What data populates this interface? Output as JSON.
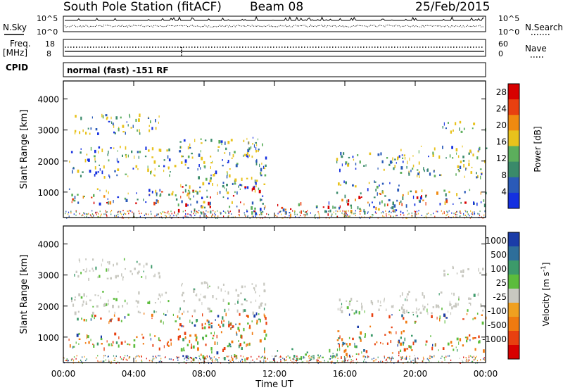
{
  "header": {
    "station": "South Pole Station (fitACF)",
    "beam": "Beam 08",
    "date": "25/Feb/2015"
  },
  "noise_panel": {
    "left_label": "N.Sky",
    "right_label": "N.Search",
    "ticks_left": [
      "10^5",
      "10^0"
    ],
    "ticks_right": [
      "10^5",
      "10^0"
    ]
  },
  "freq_panel": {
    "left_label_1": "Freq.",
    "left_label_2": "[MHz]",
    "ticks_left": [
      "18",
      "8"
    ],
    "right_label": "Nave",
    "ticks_right": [
      "60",
      "0"
    ]
  },
  "cpid": {
    "label": "CPID",
    "value": "normal (fast) -151 RF"
  },
  "chart_data": [
    {
      "type": "heatmap",
      "name": "power-panel",
      "ylabel": "Slant Range [km]",
      "xlabel": "",
      "ylim": [
        180,
        4580
      ],
      "yticks": [
        "1000",
        "2000",
        "3000",
        "4000"
      ],
      "xticks": [
        "00:00",
        "04:00",
        "08:00",
        "12:00",
        "16:00",
        "20:00",
        "00:00"
      ],
      "x_hours": [
        0,
        4,
        8,
        12,
        16,
        20,
        24
      ],
      "colorbar": {
        "label": "Power [dB]",
        "ticks": [
          "4",
          "8",
          "12",
          "16",
          "20",
          "24",
          "28"
        ],
        "range": [
          0,
          30
        ],
        "colors": [
          "#1530e0",
          "#2a5ab8",
          "#3a8a6a",
          "#5cae5c",
          "#e8c21c",
          "#f08a10",
          "#e84010",
          "#d80000"
        ]
      }
    },
    {
      "type": "heatmap",
      "name": "velocity-panel",
      "ylabel": "Slant Range [km]",
      "xlabel": "Time UT",
      "ylim": [
        180,
        4580
      ],
      "yticks": [
        "1000",
        "2000",
        "3000",
        "4000"
      ],
      "xticks": [
        "00:00",
        "04:00",
        "08:00",
        "12:00",
        "16:00",
        "20:00",
        "00:00"
      ],
      "x_hours": [
        0,
        4,
        8,
        12,
        16,
        20,
        24
      ],
      "colorbar": {
        "label": "Velocity [m s",
        "label_sup": "-1",
        "label_end": "]",
        "ticks": [
          "1000",
          "500",
          "100",
          "25",
          "-25",
          "-100",
          "-500",
          "-1000"
        ],
        "colors": [
          "#1a3ca8",
          "#2e6e9a",
          "#3c9a6a",
          "#5cbc3c",
          "#c8c8c0",
          "#f0a020",
          "#f07a10",
          "#e84010",
          "#d80000"
        ]
      }
    }
  ]
}
